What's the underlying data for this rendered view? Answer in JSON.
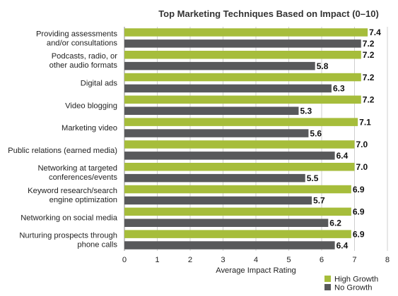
{
  "chart_data": {
    "type": "bar",
    "orientation": "horizontal",
    "title": "Top Marketing Techniques Based on Impact (0–10)",
    "xlabel": "Average Impact Rating",
    "ylabel": "",
    "xlim": [
      0,
      8
    ],
    "ticks": [
      "0",
      "1",
      "2",
      "3",
      "4",
      "5",
      "6",
      "7",
      "8"
    ],
    "grid": true,
    "legend_position": "bottom-right",
    "categories": [
      [
        "Providing assessments",
        "and/or consultations"
      ],
      [
        "Podcasts, radio, or",
        "other audio formats"
      ],
      [
        "Digital ads"
      ],
      [
        "Video blogging"
      ],
      [
        "Marketing video"
      ],
      [
        "Public relations (earned media)"
      ],
      [
        "Networking at targeted",
        "conferences/events"
      ],
      [
        "Keyword research/search",
        "engine optimization"
      ],
      [
        "Networking on social media"
      ],
      [
        "Nurturing prospects through",
        "phone calls"
      ]
    ],
    "series": [
      {
        "name": "High Growth",
        "color": "#A6BD3B",
        "values": [
          7.4,
          7.2,
          7.2,
          7.2,
          7.1,
          7.0,
          7.0,
          6.9,
          6.9,
          6.9
        ],
        "labels": [
          "7.4",
          "7.2",
          "7.2",
          "7.2",
          "7.1",
          "7.0",
          "7.0",
          "6.9",
          "6.9",
          "6.9"
        ]
      },
      {
        "name": "No Growth",
        "color": "#58595B",
        "values": [
          7.2,
          5.8,
          6.3,
          5.3,
          5.6,
          6.4,
          5.5,
          5.7,
          6.2,
          6.4
        ],
        "labels": [
          "7.2",
          "5.8",
          "6.3",
          "5.3",
          "5.6",
          "6.4",
          "5.5",
          "5.7",
          "6.2",
          "6.4"
        ]
      }
    ]
  }
}
